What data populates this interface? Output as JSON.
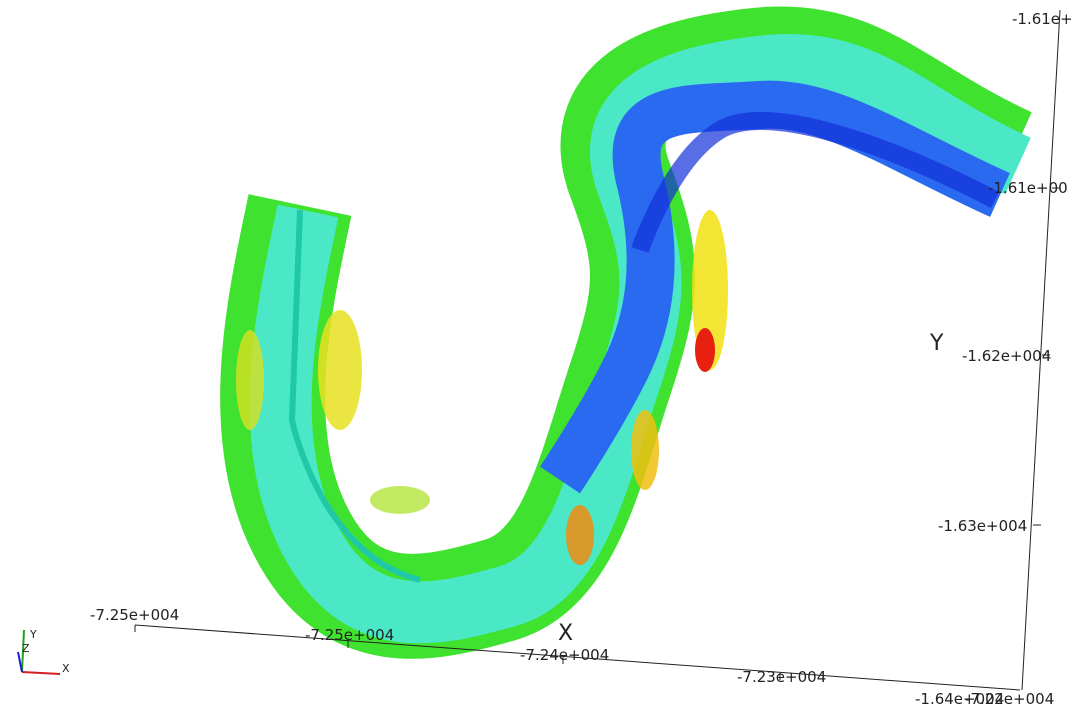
{
  "axes": {
    "x": {
      "title": "X",
      "ticks": [
        "-7.25e+004",
        "-7.25e+004",
        "-7.24e+004",
        "-7.23e+004",
        "-7.22e+004"
      ]
    },
    "y": {
      "title": "Y",
      "ticks": [
        "-1.61e+",
        "-1.61e+00",
        "-1.62e+004",
        "-1.63e+004",
        "-1.64e+004"
      ]
    }
  },
  "orientation_axes": {
    "x": "X",
    "y": "Y",
    "z": "Z"
  }
}
